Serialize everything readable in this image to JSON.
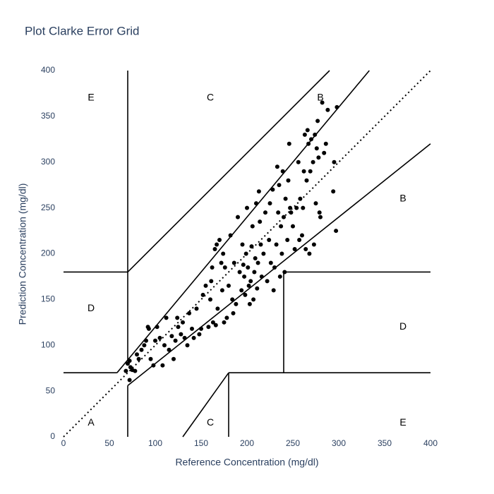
{
  "chart_data": {
    "type": "scatter",
    "title": "Plot Clarke Error Grid",
    "x_label": "Reference Concentration (mg/dl)",
    "y_label": "Prediction Concentration (mg/dl)",
    "xlim": [
      0,
      400
    ],
    "ylim": [
      0,
      400
    ],
    "xticks": [
      0,
      50,
      100,
      150,
      200,
      250,
      300,
      350,
      400
    ],
    "yticks": [
      0,
      50,
      100,
      150,
      200,
      250,
      300,
      350,
      400
    ],
    "grid": false,
    "color": "#000000",
    "x": [
      68,
      70,
      72,
      73,
      75,
      72,
      78,
      80,
      82,
      85,
      88,
      90,
      92,
      93,
      95,
      98,
      100,
      102,
      105,
      108,
      110,
      112,
      115,
      118,
      120,
      122,
      124,
      125,
      128,
      130,
      132,
      135,
      137,
      140,
      142,
      145,
      148,
      150,
      152,
      155,
      158,
      160,
      161,
      162,
      163,
      165,
      166,
      167,
      168,
      170,
      172,
      173,
      174,
      175,
      176,
      178,
      180,
      182,
      184,
      185,
      186,
      188,
      190,
      192,
      194,
      195,
      196,
      197,
      198,
      199,
      200,
      201,
      202,
      203,
      204,
      205,
      206,
      207,
      208,
      209,
      210,
      211,
      212,
      213,
      214,
      215,
      216,
      218,
      220,
      222,
      224,
      225,
      226,
      228,
      229,
      230,
      232,
      233,
      234,
      235,
      236,
      237,
      238,
      239,
      240,
      241,
      242,
      244,
      245,
      246,
      247,
      248,
      250,
      252,
      254,
      256,
      257,
      258,
      260,
      261,
      262,
      263,
      264,
      265,
      266,
      267,
      268,
      269,
      270,
      272,
      273,
      274,
      275,
      276,
      277,
      278,
      279,
      280,
      282,
      284,
      286,
      288,
      294,
      295,
      297,
      298
    ],
    "values": [
      72,
      80,
      83,
      76,
      73,
      62,
      72,
      90,
      85,
      95,
      100,
      105,
      120,
      118,
      85,
      78,
      105,
      120,
      108,
      78,
      100,
      130,
      95,
      110,
      85,
      105,
      130,
      120,
      112,
      125,
      108,
      100,
      135,
      118,
      108,
      140,
      112,
      118,
      155,
      165,
      120,
      150,
      170,
      185,
      125,
      205,
      122,
      210,
      140,
      215,
      190,
      160,
      200,
      125,
      185,
      130,
      165,
      220,
      150,
      135,
      190,
      145,
      240,
      180,
      160,
      210,
      188,
      175,
      155,
      200,
      250,
      185,
      165,
      145,
      170,
      208,
      230,
      150,
      180,
      195,
      255,
      162,
      190,
      268,
      235,
      210,
      175,
      200,
      245,
      170,
      215,
      255,
      190,
      270,
      160,
      185,
      210,
      295,
      245,
      275,
      175,
      230,
      200,
      290,
      240,
      180,
      260,
      215,
      280,
      320,
      250,
      245,
      230,
      205,
      250,
      300,
      215,
      260,
      220,
      250,
      290,
      330,
      205,
      280,
      335,
      320,
      200,
      290,
      325,
      300,
      210,
      330,
      255,
      315,
      345,
      305,
      245,
      240,
      365,
      310,
      320,
      357,
      268,
      300,
      225,
      360
    ],
    "lines": [
      {
        "x": [
          0,
          400
        ],
        "y": [
          0,
          400
        ],
        "dash": true
      },
      {
        "x": [
          0,
          58.333
        ],
        "y": [
          70,
          70
        ]
      },
      {
        "x": [
          58.333,
          333.333
        ],
        "y": [
          70,
          400
        ]
      },
      {
        "x": [
          70,
          70
        ],
        "y": [
          84,
          400
        ]
      },
      {
        "x": [
          0,
          70
        ],
        "y": [
          180,
          180
        ]
      },
      {
        "x": [
          70,
          290
        ],
        "y": [
          180,
          400
        ]
      },
      {
        "x": [
          70,
          70
        ],
        "y": [
          0,
          56
        ]
      },
      {
        "x": [
          70,
          400
        ],
        "y": [
          56,
          320
        ]
      },
      {
        "x": [
          180,
          180
        ],
        "y": [
          0,
          70
        ]
      },
      {
        "x": [
          180,
          400
        ],
        "y": [
          70,
          70
        ]
      },
      {
        "x": [
          240,
          240
        ],
        "y": [
          70,
          180
        ]
      },
      {
        "x": [
          240,
          400
        ],
        "y": [
          180,
          180
        ]
      },
      {
        "x": [
          130,
          180
        ],
        "y": [
          0,
          70
        ]
      }
    ],
    "annotations": [
      {
        "text": "A",
        "x": 30,
        "y": 15
      },
      {
        "text": "B",
        "x": 370,
        "y": 260
      },
      {
        "text": "B",
        "x": 280,
        "y": 370
      },
      {
        "text": "C",
        "x": 160,
        "y": 370
      },
      {
        "text": "C",
        "x": 160,
        "y": 15
      },
      {
        "text": "D",
        "x": 30,
        "y": 140
      },
      {
        "text": "D",
        "x": 370,
        "y": 120
      },
      {
        "text": "E",
        "x": 30,
        "y": 370
      },
      {
        "text": "E",
        "x": 370,
        "y": 15
      }
    ]
  }
}
